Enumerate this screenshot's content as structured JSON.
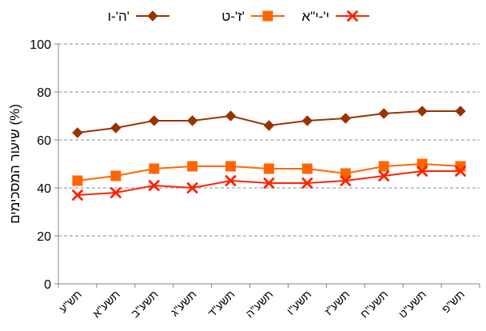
{
  "chart_data": {
    "type": "line",
    "title": "",
    "xlabel": "",
    "ylabel": "שיעור המסכימים (%)",
    "ylim": [
      0,
      100
    ],
    "yticks": [
      0,
      20,
      40,
      60,
      80,
      100
    ],
    "grid": true,
    "legend_position": "top",
    "categories": [
      "תש\"ע",
      "תשע\"א",
      "תשע\"ב",
      "תשע\"ג",
      "תשע\"ד",
      "תשע\"ה",
      "תשע\"ו",
      "תשע\"ז",
      "תשע\"ח",
      "תשע\"ט",
      "תש\"פ"
    ],
    "series": [
      {
        "name": "ה'-ו'",
        "color": "#993300",
        "marker": "diamond",
        "values": [
          63,
          65,
          68,
          68,
          70,
          66,
          68,
          69,
          71,
          72,
          72
        ]
      },
      {
        "name": "ז'-ט'",
        "color": "#ff6600",
        "marker": "square",
        "values": [
          43,
          45,
          48,
          49,
          49,
          48,
          48,
          46,
          49,
          50,
          49
        ]
      },
      {
        "name": "י'-י\"א",
        "color": "#ff2200",
        "marker": "x",
        "values": [
          37,
          38,
          41,
          40,
          43,
          42,
          42,
          43,
          45,
          47,
          47
        ]
      }
    ],
    "legend_order": [
      2,
      1,
      0
    ],
    "colors": {
      "grid": "#8c8c8c",
      "axis": "#868686"
    }
  }
}
